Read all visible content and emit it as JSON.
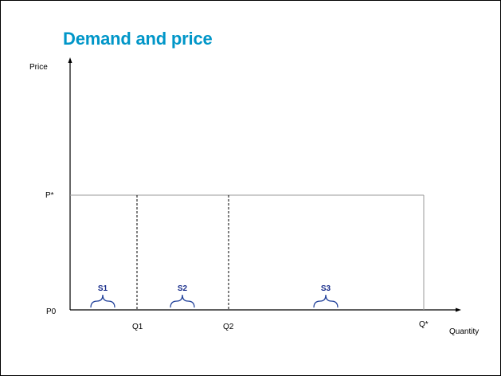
{
  "slide": {
    "title": "Demand and price",
    "title_color": "#0096c8"
  },
  "axes": {
    "y_label": "Price",
    "x_label": "Quantity"
  },
  "price_levels": {
    "low": "P0",
    "high": "P*"
  },
  "quantity_marks": [
    "Q1",
    "Q2",
    "Q*"
  ],
  "segments": [
    {
      "label": "S1"
    },
    {
      "label": "S2"
    },
    {
      "label": "S3"
    }
  ],
  "colors": {
    "axis": "#000000",
    "guide_line": "#999999",
    "dashed_line": "#000000",
    "brace": "#1f3f99",
    "segment_label": "#1a2f8c"
  }
}
